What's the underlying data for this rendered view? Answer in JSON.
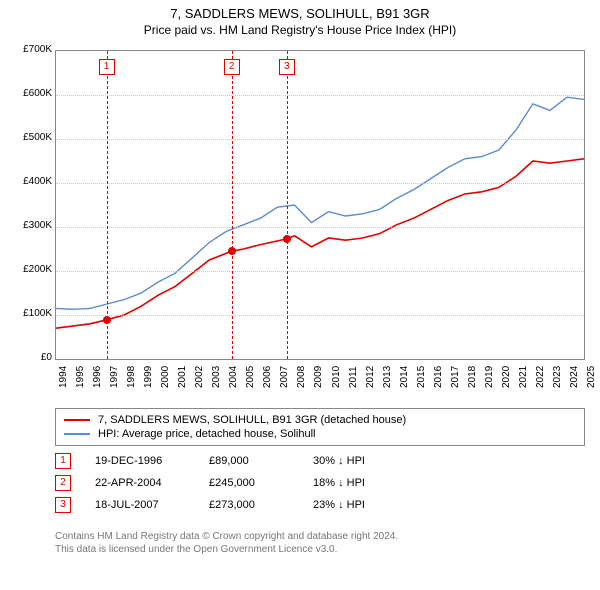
{
  "title": "7, SADDLERS MEWS, SOLIHULL, B91 3GR",
  "subtitle": "Price paid vs. HM Land Registry's House Price Index (HPI)",
  "chart": {
    "type": "line",
    "x_min_year": 1994,
    "x_max_year": 2025,
    "y_min": 0,
    "y_max": 700000,
    "y_step": 100000,
    "y_tick_labels": [
      "£0",
      "£100K",
      "£200K",
      "£300K",
      "£400K",
      "£500K",
      "£600K",
      "£700K"
    ],
    "x_tick_labels": [
      "1994",
      "1995",
      "1996",
      "1997",
      "1998",
      "1999",
      "2000",
      "2001",
      "2002",
      "2003",
      "2004",
      "2005",
      "2006",
      "2007",
      "2008",
      "2009",
      "2010",
      "2011",
      "2012",
      "2013",
      "2014",
      "2015",
      "2016",
      "2017",
      "2018",
      "2019",
      "2020",
      "2021",
      "2022",
      "2023",
      "2024",
      "2025"
    ],
    "grid_color": "#cccccc",
    "border_color": "#888888",
    "background_color": "#ffffff",
    "series": [
      {
        "name": "price_paid",
        "color": "#e00000",
        "width": 1.6,
        "points": [
          [
            1994,
            70000
          ],
          [
            1996,
            80000
          ],
          [
            1996.97,
            89000
          ],
          [
            1998,
            100000
          ],
          [
            1999,
            120000
          ],
          [
            2000,
            145000
          ],
          [
            2001,
            165000
          ],
          [
            2002,
            195000
          ],
          [
            2003,
            225000
          ],
          [
            2004.31,
            245000
          ],
          [
            2005,
            250000
          ],
          [
            2006,
            260000
          ],
          [
            2007.55,
            273000
          ],
          [
            2008,
            280000
          ],
          [
            2009,
            255000
          ],
          [
            2010,
            275000
          ],
          [
            2011,
            270000
          ],
          [
            2012,
            275000
          ],
          [
            2013,
            285000
          ],
          [
            2014,
            305000
          ],
          [
            2015,
            320000
          ],
          [
            2016,
            340000
          ],
          [
            2017,
            360000
          ],
          [
            2018,
            375000
          ],
          [
            2019,
            380000
          ],
          [
            2020,
            390000
          ],
          [
            2021,
            415000
          ],
          [
            2022,
            450000
          ],
          [
            2023,
            445000
          ],
          [
            2024,
            450000
          ],
          [
            2025,
            455000
          ]
        ]
      },
      {
        "name": "hpi",
        "color": "#5b8bd4",
        "width": 1.4,
        "points": [
          [
            1994,
            115000
          ],
          [
            1995,
            113000
          ],
          [
            1996,
            115000
          ],
          [
            1997,
            125000
          ],
          [
            1998,
            135000
          ],
          [
            1999,
            150000
          ],
          [
            2000,
            175000
          ],
          [
            2001,
            195000
          ],
          [
            2002,
            230000
          ],
          [
            2003,
            265000
          ],
          [
            2004,
            290000
          ],
          [
            2005,
            305000
          ],
          [
            2006,
            320000
          ],
          [
            2007,
            345000
          ],
          [
            2008,
            350000
          ],
          [
            2009,
            310000
          ],
          [
            2010,
            335000
          ],
          [
            2011,
            325000
          ],
          [
            2012,
            330000
          ],
          [
            2013,
            340000
          ],
          [
            2014,
            365000
          ],
          [
            2015,
            385000
          ],
          [
            2016,
            410000
          ],
          [
            2017,
            435000
          ],
          [
            2018,
            455000
          ],
          [
            2019,
            460000
          ],
          [
            2020,
            475000
          ],
          [
            2021,
            520000
          ],
          [
            2022,
            580000
          ],
          [
            2023,
            565000
          ],
          [
            2024,
            595000
          ],
          [
            2025,
            590000
          ]
        ]
      }
    ],
    "events": [
      {
        "num": "1",
        "year": 1996.97,
        "value": 89000
      },
      {
        "num": "2",
        "year": 2004.31,
        "value": 245000
      },
      {
        "num": "3",
        "year": 2007.55,
        "value": 273000
      }
    ]
  },
  "legend": [
    {
      "color": "#e00000",
      "text": "7, SADDLERS MEWS, SOLIHULL, B91 3GR (detached house)"
    },
    {
      "color": "#5b8bd4",
      "text": "HPI: Average price, detached house, Solihull"
    }
  ],
  "transactions": [
    {
      "num": "1",
      "date": "19-DEC-1996",
      "price": "£89,000",
      "delta": "30% ↓ HPI"
    },
    {
      "num": "2",
      "date": "22-APR-2004",
      "price": "£245,000",
      "delta": "18% ↓ HPI"
    },
    {
      "num": "3",
      "date": "18-JUL-2007",
      "price": "£273,000",
      "delta": "23% ↓ HPI"
    }
  ],
  "attribution": {
    "line1": "Contains HM Land Registry data © Crown copyright and database right 2024.",
    "line2": "This data is licensed under the Open Government Licence v3.0."
  }
}
